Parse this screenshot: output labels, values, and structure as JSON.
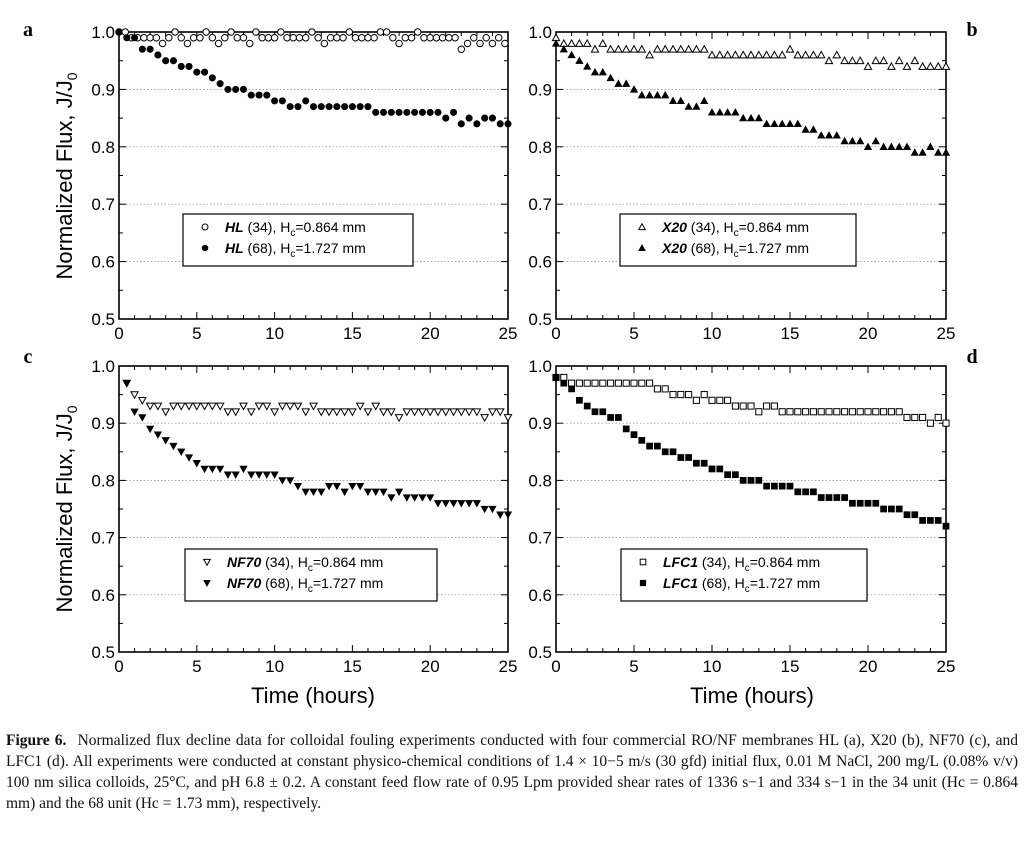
{
  "figure": {
    "ylabel": "Normalized Flux, J/J",
    "ylabel_sub": "0",
    "xlabel": "Time (hours)"
  },
  "chart_data": [
    {
      "panel": "a",
      "type": "scatter",
      "xlim": [
        0,
        25
      ],
      "ylim": [
        0.5,
        1.0
      ],
      "xticks": [
        "0",
        "5",
        "10",
        "15",
        "20",
        "25"
      ],
      "yticks": [
        "0.5",
        "0.6",
        "0.7",
        "0.8",
        "0.9",
        "1.0"
      ],
      "legend": {
        "loc": "center",
        "entries": [
          {
            "name": "HL",
            "suffix": " (34), H",
            "sub": "c",
            "value": "=0.864 mm"
          },
          {
            "name": "HL",
            "suffix": " (68), H",
            "sub": "c",
            "value": "=1.727 mm"
          }
        ]
      },
      "series": [
        {
          "name": "HL (34)",
          "marker": "circle-open",
          "x": [
            0,
            0.4,
            0.8,
            1.2,
            1.6,
            2.0,
            2.4,
            2.8,
            3.2,
            3.6,
            4.0,
            4.4,
            4.8,
            5.2,
            5.6,
            6.0,
            6.4,
            6.8,
            7.2,
            7.6,
            8.0,
            8.4,
            8.8,
            9.2,
            9.6,
            10.0,
            10.4,
            10.8,
            11.2,
            11.6,
            12.0,
            12.4,
            12.8,
            13.2,
            13.6,
            14.0,
            14.4,
            14.8,
            15.2,
            15.6,
            16.0,
            16.4,
            16.8,
            17.2,
            17.6,
            18.0,
            18.4,
            18.8,
            19.2,
            19.6,
            20.0,
            20.4,
            20.8,
            21.2,
            21.6,
            22.0,
            22.4,
            22.8,
            23.2,
            23.6,
            24.0,
            24.4,
            24.8
          ],
          "y": [
            1.0,
            1.0,
            0.99,
            0.99,
            0.99,
            0.99,
            0.99,
            0.98,
            0.99,
            1.0,
            0.99,
            0.98,
            0.99,
            0.99,
            1.0,
            0.99,
            0.98,
            0.99,
            1.0,
            0.99,
            0.99,
            0.98,
            1.0,
            0.99,
            0.99,
            0.99,
            1.0,
            0.99,
            0.99,
            0.99,
            0.99,
            1.0,
            0.99,
            0.98,
            0.99,
            0.99,
            0.99,
            1.0,
            0.99,
            0.99,
            0.99,
            0.99,
            1.0,
            1.0,
            0.99,
            0.98,
            0.99,
            0.99,
            1.0,
            0.99,
            0.99,
            0.99,
            0.99,
            0.99,
            0.99,
            0.97,
            0.98,
            0.99,
            0.98,
            0.99,
            0.98,
            0.99,
            0.98
          ]
        },
        {
          "name": "HL (68)",
          "marker": "circle-filled",
          "x": [
            0,
            0.5,
            1,
            1.5,
            2,
            2.5,
            3,
            3.5,
            4,
            4.5,
            5,
            5.5,
            6,
            6.5,
            7,
            7.5,
            8,
            8.5,
            9,
            9.5,
            10,
            10.5,
            11,
            11.5,
            12,
            12.5,
            13,
            13.5,
            14,
            14.5,
            15,
            15.5,
            16,
            16.5,
            17,
            17.5,
            18,
            18.5,
            19,
            19.5,
            20,
            20.5,
            21,
            21.5,
            22,
            22.5,
            23,
            23.5,
            24,
            24.5,
            25
          ],
          "y": [
            1.0,
            0.99,
            0.99,
            0.97,
            0.97,
            0.96,
            0.95,
            0.95,
            0.94,
            0.94,
            0.93,
            0.93,
            0.92,
            0.91,
            0.9,
            0.9,
            0.9,
            0.89,
            0.89,
            0.89,
            0.88,
            0.88,
            0.87,
            0.87,
            0.88,
            0.87,
            0.87,
            0.87,
            0.87,
            0.87,
            0.87,
            0.87,
            0.87,
            0.86,
            0.86,
            0.86,
            0.86,
            0.86,
            0.86,
            0.86,
            0.86,
            0.86,
            0.85,
            0.86,
            0.84,
            0.85,
            0.84,
            0.85,
            0.85,
            0.84,
            0.84
          ]
        }
      ]
    },
    {
      "panel": "b",
      "type": "scatter",
      "xlim": [
        0,
        25
      ],
      "ylim": [
        0.5,
        1.0
      ],
      "xticks": [
        "0",
        "5",
        "10",
        "15",
        "20",
        "25"
      ],
      "yticks": [
        "0.5",
        "0.6",
        "0.7",
        "0.8",
        "0.9",
        "1.0"
      ],
      "legend": {
        "loc": "center",
        "entries": [
          {
            "name": "X20",
            "suffix": " (34), H",
            "sub": "c",
            "value": "=0.864 mm"
          },
          {
            "name": "X20",
            "suffix": " (68), H",
            "sub": "c",
            "value": "=1.727 mm"
          }
        ]
      },
      "series": [
        {
          "name": "X20 (34)",
          "marker": "triangle-up-open",
          "x": [
            0,
            0.5,
            1,
            1.5,
            2,
            2.5,
            3,
            3.5,
            4,
            4.5,
            5,
            5.5,
            6,
            6.5,
            7,
            7.5,
            8,
            8.5,
            9,
            9.5,
            10,
            10.5,
            11,
            11.5,
            12,
            12.5,
            13,
            13.5,
            14,
            14.5,
            15,
            15.5,
            16,
            16.5,
            17,
            17.5,
            18,
            18.5,
            19,
            19.5,
            20,
            20.5,
            21,
            21.5,
            22,
            22.5,
            23,
            23.5,
            24,
            24.5,
            25
          ],
          "y": [
            0.99,
            0.98,
            0.98,
            0.98,
            0.98,
            0.97,
            0.98,
            0.97,
            0.97,
            0.97,
            0.97,
            0.97,
            0.96,
            0.97,
            0.97,
            0.97,
            0.97,
            0.97,
            0.97,
            0.97,
            0.96,
            0.96,
            0.96,
            0.96,
            0.96,
            0.96,
            0.96,
            0.96,
            0.96,
            0.96,
            0.97,
            0.96,
            0.96,
            0.96,
            0.96,
            0.95,
            0.96,
            0.95,
            0.95,
            0.95,
            0.94,
            0.95,
            0.95,
            0.94,
            0.95,
            0.94,
            0.95,
            0.94,
            0.94,
            0.94,
            0.94
          ]
        },
        {
          "name": "X20 (68)",
          "marker": "triangle-up-filled",
          "x": [
            0,
            0.5,
            1,
            1.5,
            2,
            2.5,
            3,
            3.5,
            4,
            4.5,
            5,
            5.5,
            6,
            6.5,
            7,
            7.5,
            8,
            8.5,
            9,
            9.5,
            10,
            10.5,
            11,
            11.5,
            12,
            12.5,
            13,
            13.5,
            14,
            14.5,
            15,
            15.5,
            16,
            16.5,
            17,
            17.5,
            18,
            18.5,
            19,
            19.5,
            20,
            20.5,
            21,
            21.5,
            22,
            22.5,
            23,
            23.5,
            24,
            24.5,
            25
          ],
          "y": [
            0.98,
            0.97,
            0.96,
            0.95,
            0.94,
            0.93,
            0.93,
            0.92,
            0.91,
            0.91,
            0.9,
            0.89,
            0.89,
            0.89,
            0.89,
            0.88,
            0.88,
            0.87,
            0.87,
            0.88,
            0.86,
            0.86,
            0.86,
            0.86,
            0.85,
            0.85,
            0.85,
            0.84,
            0.84,
            0.84,
            0.84,
            0.84,
            0.83,
            0.83,
            0.82,
            0.82,
            0.82,
            0.81,
            0.81,
            0.81,
            0.8,
            0.81,
            0.8,
            0.8,
            0.8,
            0.8,
            0.79,
            0.79,
            0.8,
            0.79,
            0.79
          ]
        }
      ]
    },
    {
      "panel": "c",
      "type": "scatter",
      "xlim": [
        0,
        25
      ],
      "ylim": [
        0.5,
        1.0
      ],
      "xticks": [
        "0",
        "5",
        "10",
        "15",
        "20",
        "25"
      ],
      "yticks": [
        "0.5",
        "0.6",
        "0.7",
        "0.8",
        "0.9",
        "1.0"
      ],
      "legend": {
        "loc": "lower-center",
        "entries": [
          {
            "name": "NF70",
            "suffix": " (34), H",
            "sub": "c",
            "value": "=0.864 mm"
          },
          {
            "name": "NF70",
            "suffix": " (68), H",
            "sub": "c",
            "value": "=1.727 mm"
          }
        ]
      },
      "series": [
        {
          "name": "NF70 (34)",
          "marker": "triangle-down-open",
          "x": [
            0.5,
            1,
            1.5,
            2,
            2.5,
            3,
            3.5,
            4,
            4.5,
            5,
            5.5,
            6,
            6.5,
            7,
            7.5,
            8,
            8.5,
            9,
            9.5,
            10,
            10.5,
            11,
            11.5,
            12,
            12.5,
            13,
            13.5,
            14,
            14.5,
            15,
            15.5,
            16,
            16.5,
            17,
            17.5,
            18,
            18.5,
            19,
            19.5,
            20,
            20.5,
            21,
            21.5,
            22,
            22.5,
            23,
            23.5,
            24,
            24.5,
            25
          ],
          "y": [
            0.97,
            0.95,
            0.94,
            0.93,
            0.93,
            0.92,
            0.93,
            0.93,
            0.93,
            0.93,
            0.93,
            0.93,
            0.93,
            0.92,
            0.92,
            0.93,
            0.92,
            0.93,
            0.93,
            0.92,
            0.93,
            0.93,
            0.93,
            0.92,
            0.93,
            0.92,
            0.92,
            0.92,
            0.92,
            0.92,
            0.93,
            0.92,
            0.93,
            0.92,
            0.92,
            0.91,
            0.92,
            0.92,
            0.92,
            0.92,
            0.92,
            0.92,
            0.92,
            0.92,
            0.92,
            0.92,
            0.91,
            0.92,
            0.92,
            0.91
          ]
        },
        {
          "name": "NF70 (68)",
          "marker": "triangle-down-filled",
          "x": [
            0.5,
            1,
            1.5,
            2,
            2.5,
            3,
            3.5,
            4,
            4.5,
            5,
            5.5,
            6,
            6.5,
            7,
            7.5,
            8,
            8.5,
            9,
            9.5,
            10,
            10.5,
            11,
            11.5,
            12,
            12.5,
            13,
            13.5,
            14,
            14.5,
            15,
            15.5,
            16,
            16.5,
            17,
            17.5,
            18,
            18.5,
            19,
            19.5,
            20,
            20.5,
            21,
            21.5,
            22,
            22.5,
            23,
            23.5,
            24,
            24.5,
            25
          ],
          "y": [
            0.97,
            0.92,
            0.91,
            0.89,
            0.88,
            0.87,
            0.86,
            0.85,
            0.84,
            0.83,
            0.82,
            0.82,
            0.82,
            0.81,
            0.81,
            0.82,
            0.81,
            0.81,
            0.81,
            0.81,
            0.8,
            0.8,
            0.79,
            0.78,
            0.78,
            0.78,
            0.79,
            0.79,
            0.78,
            0.79,
            0.79,
            0.78,
            0.78,
            0.78,
            0.77,
            0.78,
            0.77,
            0.77,
            0.77,
            0.77,
            0.76,
            0.76,
            0.76,
            0.76,
            0.76,
            0.76,
            0.75,
            0.75,
            0.74,
            0.74
          ]
        }
      ]
    },
    {
      "panel": "d",
      "type": "scatter",
      "xlim": [
        0,
        25
      ],
      "ylim": [
        0.5,
        1.0
      ],
      "xticks": [
        "0",
        "5",
        "10",
        "15",
        "20",
        "25"
      ],
      "yticks": [
        "0.5",
        "0.6",
        "0.7",
        "0.8",
        "0.9",
        "1.0"
      ],
      "legend": {
        "loc": "lower-center",
        "entries": [
          {
            "name": "LFC1",
            "suffix": " (34), H",
            "sub": "c",
            "value": "=0.864 mm"
          },
          {
            "name": "LFC1",
            "suffix": " (68), H",
            "sub": "c",
            "value": "=1.727 mm"
          }
        ]
      },
      "series": [
        {
          "name": "LFC1 (34)",
          "marker": "square-open",
          "x": [
            0,
            0.5,
            1,
            1.5,
            2,
            2.5,
            3,
            3.5,
            4,
            4.5,
            5,
            5.5,
            6,
            6.5,
            7,
            7.5,
            8,
            8.5,
            9,
            9.5,
            10,
            10.5,
            11,
            11.5,
            12,
            12.5,
            13,
            13.5,
            14,
            14.5,
            15,
            15.5,
            16,
            16.5,
            17,
            17.5,
            18,
            18.5,
            19,
            19.5,
            20,
            20.5,
            21,
            21.5,
            22,
            22.5,
            23,
            23.5,
            24,
            24.5,
            25
          ],
          "y": [
            0.98,
            0.98,
            0.97,
            0.97,
            0.97,
            0.97,
            0.97,
            0.97,
            0.97,
            0.97,
            0.97,
            0.97,
            0.97,
            0.96,
            0.96,
            0.95,
            0.95,
            0.95,
            0.94,
            0.95,
            0.94,
            0.94,
            0.94,
            0.93,
            0.93,
            0.93,
            0.92,
            0.93,
            0.93,
            0.92,
            0.92,
            0.92,
            0.92,
            0.92,
            0.92,
            0.92,
            0.92,
            0.92,
            0.92,
            0.92,
            0.92,
            0.92,
            0.92,
            0.92,
            0.92,
            0.91,
            0.91,
            0.91,
            0.9,
            0.91,
            0.9
          ]
        },
        {
          "name": "LFC1 (68)",
          "marker": "square-filled",
          "x": [
            0,
            0.5,
            1,
            1.5,
            2,
            2.5,
            3,
            3.5,
            4,
            4.5,
            5,
            5.5,
            6,
            6.5,
            7,
            7.5,
            8,
            8.5,
            9,
            9.5,
            10,
            10.5,
            11,
            11.5,
            12,
            12.5,
            13,
            13.5,
            14,
            14.5,
            15,
            15.5,
            16,
            16.5,
            17,
            17.5,
            18,
            18.5,
            19,
            19.5,
            20,
            20.5,
            21,
            21.5,
            22,
            22.5,
            23,
            23.5,
            24,
            24.5,
            25
          ],
          "y": [
            0.98,
            0.97,
            0.96,
            0.94,
            0.93,
            0.92,
            0.92,
            0.91,
            0.91,
            0.89,
            0.88,
            0.87,
            0.86,
            0.86,
            0.85,
            0.85,
            0.84,
            0.84,
            0.83,
            0.83,
            0.82,
            0.82,
            0.81,
            0.81,
            0.8,
            0.8,
            0.8,
            0.79,
            0.79,
            0.79,
            0.79,
            0.78,
            0.78,
            0.78,
            0.77,
            0.77,
            0.77,
            0.77,
            0.76,
            0.76,
            0.76,
            0.76,
            0.75,
            0.75,
            0.75,
            0.74,
            0.74,
            0.73,
            0.73,
            0.73,
            0.72
          ]
        }
      ]
    }
  ],
  "caption": {
    "label": "Figure 6.",
    "text": "Normalized flux decline data for colloidal fouling experiments conducted with four commercial RO/NF membranes HL (a), X20 (b), NF70 (c), and LFC1 (d). All experiments were conducted at constant physico-chemical conditions of 1.4 × 10−5 m/s (30 gfd) initial flux, 0.01 M NaCl, 200 mg/L (0.08% v/v) 100 nm silica colloids, 25°C, and pH 6.8 ± 0.2. A constant feed flow rate of 0.95 Lpm provided shear rates of 1336 s−1 and 334 s−1 in the 34 unit (Hc = 0.864 mm) and the 68 unit (Hc = 1.73 mm), respectively."
  }
}
